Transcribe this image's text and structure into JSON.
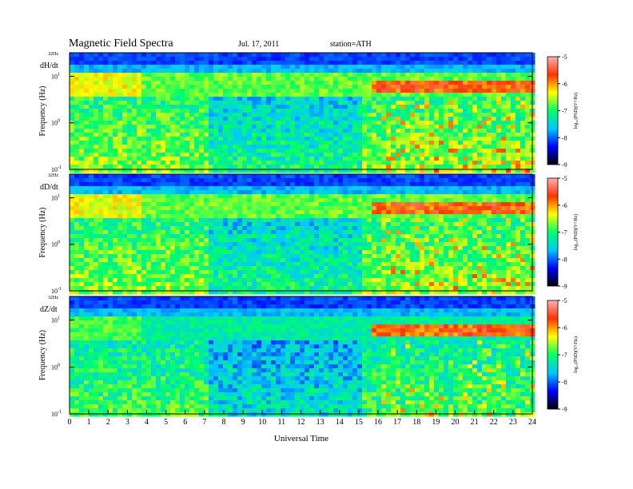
{
  "header": {
    "title": "Magnetic  Field  Spectra",
    "date": "Jul.  17, 2011",
    "station": "station=ATH"
  },
  "chart_data": {
    "type": "heatmap",
    "xlabel": "Universal Time",
    "xlim": [
      0,
      24
    ],
    "x_ticks": [
      "0",
      "1",
      "2",
      "3",
      "4",
      "5",
      "6",
      "7",
      "8",
      "9",
      "10",
      "11",
      "12",
      "13",
      "14",
      "15",
      "16",
      "17",
      "18",
      "19",
      "20",
      "21",
      "22",
      "23",
      "24"
    ],
    "ylabel": "Frequency  (Hz)",
    "yscale": "log",
    "y_top_label": "32Hz",
    "y_ticks": [
      {
        "value": 10,
        "base": "10",
        "exp": "1"
      },
      {
        "value": 1,
        "base": "10",
        "exp": "0"
      },
      {
        "value": 0.1,
        "base": "10",
        "exp": "-1"
      }
    ],
    "colorbar": {
      "label": "log₁₀(PSD)(V²/Hz)",
      "ticks": [
        "-5",
        "-6",
        "-7",
        "-8",
        "-9"
      ],
      "range": [
        -9,
        -5
      ],
      "colors": [
        "#000000",
        "#0000ff",
        "#00c8ff",
        "#00ff66",
        "#ffff00",
        "#ff3300",
        "#ffb0b0"
      ]
    },
    "panels": [
      {
        "name": "dH/dt"
      },
      {
        "name": "dD/dt"
      },
      {
        "name": "dZ/dt"
      }
    ]
  }
}
